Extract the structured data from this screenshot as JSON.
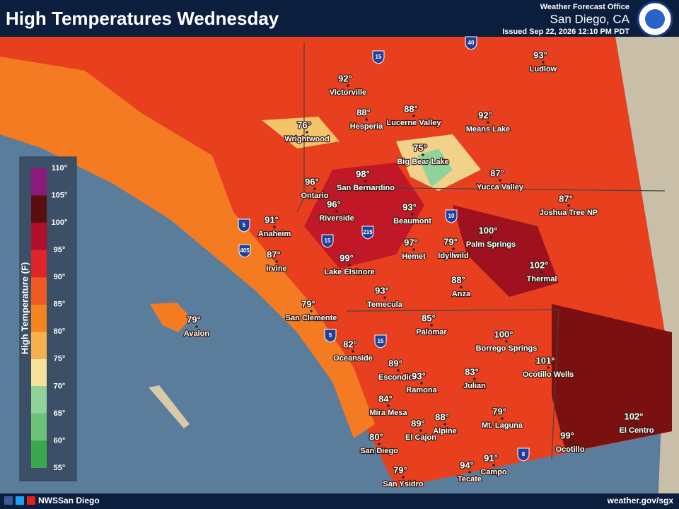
{
  "header": {
    "title": "High Temperatures Wednesday",
    "office": "Weather Forecast Office",
    "location": "San Diego, CA",
    "issued": "Issued Sep 22, 2026 12:10 PM PDT"
  },
  "legend": {
    "title": "High Temperature (F)",
    "ticks": [
      "110°",
      "105°",
      "100°",
      "95°",
      "90°",
      "85°",
      "80°",
      "75°",
      "70°",
      "65°",
      "60°",
      "55°"
    ]
  },
  "cities": [
    {
      "name": "Victorville",
      "temp": "92°"
    },
    {
      "name": "Ludlow",
      "temp": "93°"
    },
    {
      "name": "Hesperia",
      "temp": "88°"
    },
    {
      "name": "Lucerne Valley",
      "temp": "88°"
    },
    {
      "name": "Means Lake",
      "temp": "92°"
    },
    {
      "name": "Wrightwood",
      "temp": "76°"
    },
    {
      "name": "Big Bear Lake",
      "temp": "75°"
    },
    {
      "name": "Yucca Valley",
      "temp": "87°"
    },
    {
      "name": "San Bernardino",
      "temp": "98°"
    },
    {
      "name": "Ontario",
      "temp": "96°"
    },
    {
      "name": "Joshua Tree NP",
      "temp": "87°"
    },
    {
      "name": "Riverside",
      "temp": "96°"
    },
    {
      "name": "Beaumont",
      "temp": "93°"
    },
    {
      "name": "Anaheim",
      "temp": "91°"
    },
    {
      "name": "Palm Springs",
      "temp": "100°"
    },
    {
      "name": "Idyllwild",
      "temp": "79°"
    },
    {
      "name": "Hemet",
      "temp": "97°"
    },
    {
      "name": "Irvine",
      "temp": "87°"
    },
    {
      "name": "Lake Elsinore",
      "temp": "99°"
    },
    {
      "name": "Thermal",
      "temp": "102°"
    },
    {
      "name": "Anza",
      "temp": "88°"
    },
    {
      "name": "Temecula",
      "temp": "93°"
    },
    {
      "name": "San Clemente",
      "temp": "79°"
    },
    {
      "name": "Avalon",
      "temp": "79°"
    },
    {
      "name": "Palomar",
      "temp": "85°"
    },
    {
      "name": "Borrego Springs",
      "temp": "100°"
    },
    {
      "name": "Oceanside",
      "temp": "82°"
    },
    {
      "name": "Ocotillo Wells",
      "temp": "101°"
    },
    {
      "name": "Escondido",
      "temp": "89°"
    },
    {
      "name": "Ramona",
      "temp": "93°"
    },
    {
      "name": "Julian",
      "temp": "83°"
    },
    {
      "name": "Mira Mesa",
      "temp": "84°"
    },
    {
      "name": "Mt. Laguna",
      "temp": "79°"
    },
    {
      "name": "El Centro",
      "temp": "102°"
    },
    {
      "name": "Alpine",
      "temp": "88°"
    },
    {
      "name": "El Cajon",
      "temp": "89°"
    },
    {
      "name": "San Diego",
      "temp": "80°"
    },
    {
      "name": "Ocotillo",
      "temp": "99°"
    },
    {
      "name": "Campo",
      "temp": "91°"
    },
    {
      "name": "Tecate",
      "temp": "94°"
    },
    {
      "name": "San Ysidro",
      "temp": "79°"
    }
  ],
  "highways": [
    "15",
    "40",
    "5",
    "405",
    "15",
    "215",
    "10",
    "5",
    "15",
    "8"
  ],
  "footer": {
    "social": "NWSSan Diego",
    "url": "weather.gov/sgx"
  }
}
